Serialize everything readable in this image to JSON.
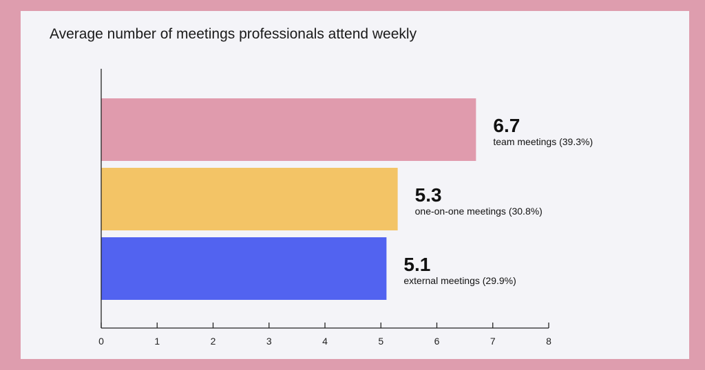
{
  "page": {
    "title": "Average number of meetings professionals attend weekly"
  },
  "chart_data": {
    "type": "bar",
    "orientation": "horizontal",
    "title": "Average number of meetings professionals attend weekly",
    "categories": [
      "team meetings",
      "one-on-one meetings",
      "external meetings"
    ],
    "values": [
      6.7,
      5.3,
      5.1
    ],
    "value_labels": [
      "6.7",
      "5.3",
      "5.1"
    ],
    "category_labels": [
      "team meetings (39.3%)",
      "one-on-one meetings (30.8%)",
      "external meetings (29.9%)"
    ],
    "percentages": [
      39.3,
      30.8,
      29.9
    ],
    "colors": [
      "#e09bad",
      "#f3c466",
      "#5263f0"
    ],
    "xlim": [
      0,
      8
    ],
    "x_ticks": [
      0,
      1,
      2,
      3,
      4,
      5,
      6,
      7,
      8
    ],
    "xlabel": "",
    "ylabel": "",
    "grid": false,
    "legend": "none"
  }
}
